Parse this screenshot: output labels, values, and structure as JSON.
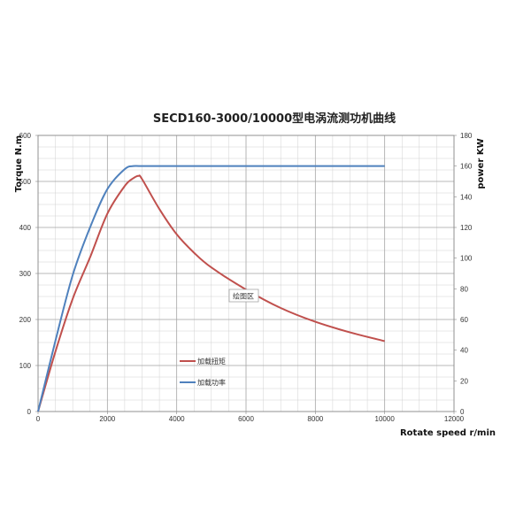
{
  "chart_data": {
    "type": "line",
    "title": "SECD160-3000/10000型电涡流测功机曲线",
    "xlabel": "Rotate speed r/min",
    "ylabel": "Torque N.m",
    "y2label": "power KW",
    "xlim": [
      0,
      12000
    ],
    "ylim": [
      0,
      600
    ],
    "y2lim": [
      0,
      180
    ],
    "x_ticks": [
      "0",
      "2000",
      "4000",
      "6000",
      "8000",
      "10000",
      "12000"
    ],
    "y_ticks": [
      "0",
      "100",
      "200",
      "300",
      "400",
      "500",
      "600"
    ],
    "y2_ticks": [
      "0",
      "20",
      "40",
      "60",
      "80",
      "100",
      "120",
      "140",
      "160",
      "180"
    ],
    "grid": true,
    "plot_area_tag": "绘图区",
    "series": [
      {
        "name": "加载扭矩",
        "axis": "left",
        "color": "#c0504d",
        "x": [
          0,
          500,
          1000,
          1500,
          2000,
          2500,
          2750,
          2900,
          3000,
          3500,
          4000,
          4500,
          5000,
          6000,
          7000,
          8000,
          9000,
          10000
        ],
        "y": [
          0,
          130,
          245,
          335,
          430,
          490,
          507,
          512,
          505,
          440,
          385,
          345,
          313,
          265,
          225,
          195,
          172,
          153
        ]
      },
      {
        "name": "加载功率",
        "axis": "right",
        "color": "#4f81bd",
        "x": [
          0,
          500,
          1000,
          1500,
          2000,
          2500,
          2750,
          3000,
          4000,
          6000,
          8000,
          10000
        ],
        "y": [
          0,
          46,
          89,
          120,
          145,
          158,
          160,
          160,
          160,
          160,
          160,
          160
        ]
      }
    ]
  }
}
